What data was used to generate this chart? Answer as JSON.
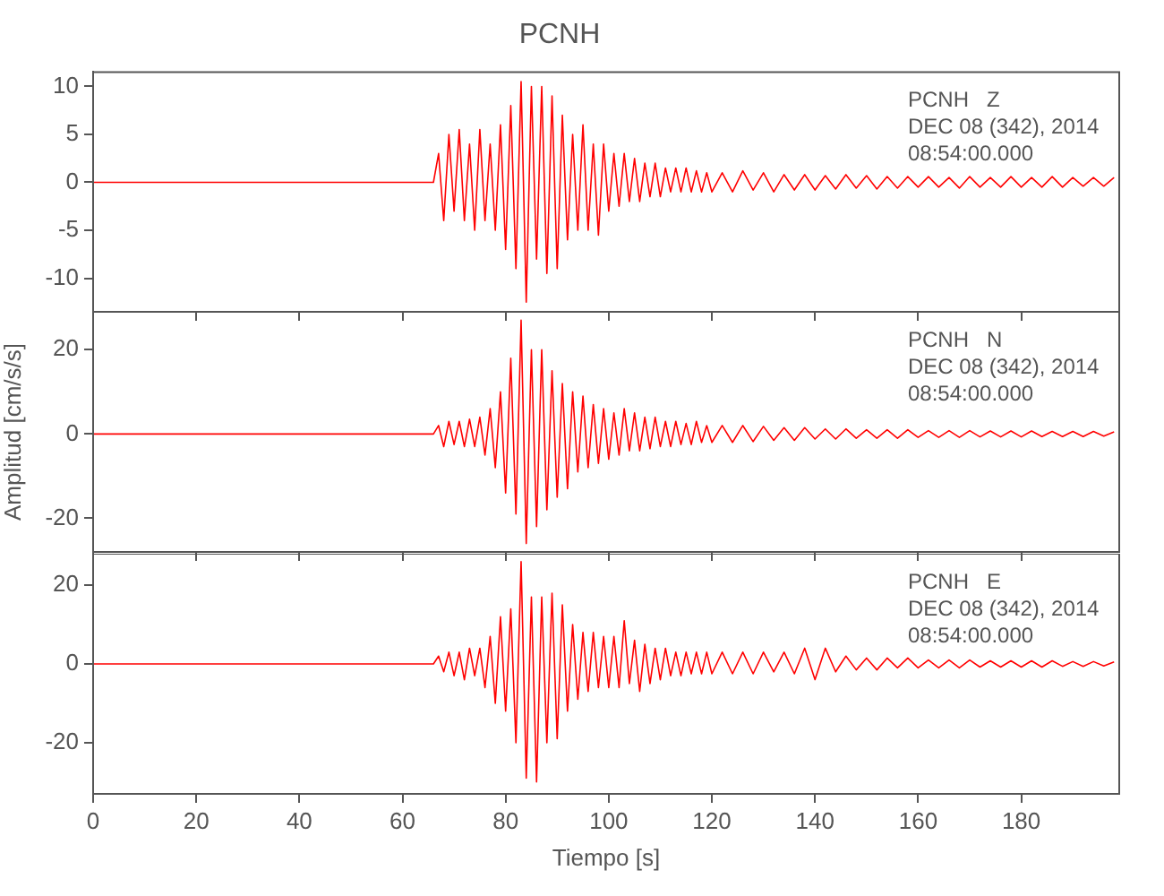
{
  "chart_data": [
    {
      "type": "line",
      "title": "PCNH",
      "annotations": [
        "PCNH   Z",
        "DEC 08 (342), 2014",
        "08:54:00.000"
      ],
      "xlim": [
        0,
        199
      ],
      "xticks": [
        0,
        20,
        40,
        60,
        80,
        100,
        120,
        140,
        160,
        180
      ],
      "ylim": [
        -13.5,
        11.5
      ],
      "yticks": [
        -10,
        -5,
        0,
        5,
        10
      ],
      "tick_labels": "y",
      "x": [
        0,
        66,
        67,
        68,
        69,
        70,
        71,
        72,
        73,
        74,
        75,
        76,
        77,
        78,
        79,
        80,
        81,
        82,
        83,
        84,
        85,
        86,
        87,
        88,
        89,
        90,
        91,
        92,
        93,
        94,
        95,
        96,
        97,
        98,
        99,
        100,
        101,
        102,
        103,
        104,
        105,
        106,
        107,
        108,
        109,
        110,
        111,
        112,
        113,
        114,
        115,
        116,
        117,
        118,
        119,
        120,
        122,
        124,
        126,
        128,
        130,
        132,
        134,
        136,
        138,
        140,
        142,
        144,
        146,
        148,
        150,
        152,
        154,
        156,
        158,
        160,
        162,
        164,
        166,
        168,
        170,
        172,
        174,
        176,
        178,
        180,
        182,
        184,
        186,
        188,
        190,
        192,
        194,
        196,
        198
      ],
      "series": [
        {
          "color": "#ff0000",
          "values": [
            0,
            0,
            3,
            -4,
            5,
            -3,
            5.5,
            -4,
            4,
            -5,
            5.5,
            -4,
            4,
            -5,
            6,
            -7,
            8,
            -9,
            10.5,
            -12.5,
            10,
            -8,
            10,
            -9.5,
            9,
            -9,
            7,
            -6,
            5,
            -5,
            6,
            -5,
            4,
            -5.5,
            4,
            -3,
            3,
            -2.5,
            3,
            -2,
            2.5,
            -2,
            2,
            -1.5,
            2,
            -1.5,
            1.5,
            -1,
            1.5,
            -1,
            1.5,
            -1,
            1.2,
            -1,
            1,
            -1,
            1,
            -1,
            1.2,
            -0.8,
            1,
            -1,
            0.8,
            -0.8,
            0.8,
            -0.8,
            0.7,
            -0.7,
            0.8,
            -0.6,
            0.7,
            -0.7,
            0.6,
            -0.6,
            0.6,
            -0.5,
            0.6,
            -0.5,
            0.5,
            -0.6,
            0.6,
            -0.5,
            0.5,
            -0.5,
            0.6,
            -0.5,
            0.5,
            -0.5,
            0.6,
            -0.5,
            0.5,
            -0.4,
            0.5,
            -0.4,
            0.5
          ]
        }
      ]
    },
    {
      "type": "line",
      "ylabel": "Amplitud [cm/s/s]",
      "annotations": [
        "PCNH   N",
        "DEC 08 (342), 2014",
        "08:54:00.000"
      ],
      "xlim": [
        0,
        199
      ],
      "xticks": [
        0,
        20,
        40,
        60,
        80,
        100,
        120,
        140,
        160,
        180
      ],
      "ylim": [
        -28,
        29
      ],
      "yticks": [
        -20,
        0,
        20
      ],
      "tick_labels": "y",
      "x": [
        0,
        66,
        67,
        68,
        69,
        70,
        71,
        72,
        73,
        74,
        75,
        76,
        77,
        78,
        79,
        80,
        81,
        82,
        83,
        84,
        85,
        86,
        87,
        88,
        89,
        90,
        91,
        92,
        93,
        94,
        95,
        96,
        97,
        98,
        99,
        100,
        101,
        102,
        103,
        104,
        105,
        106,
        107,
        108,
        109,
        110,
        111,
        112,
        113,
        114,
        115,
        116,
        117,
        118,
        119,
        120,
        122,
        124,
        126,
        128,
        130,
        132,
        134,
        136,
        138,
        140,
        142,
        144,
        146,
        148,
        150,
        152,
        154,
        156,
        158,
        160,
        162,
        164,
        166,
        168,
        170,
        172,
        174,
        176,
        178,
        180,
        182,
        184,
        186,
        188,
        190,
        192,
        194,
        196,
        198
      ],
      "series": [
        {
          "color": "#ff0000",
          "values": [
            0,
            0,
            2,
            -3,
            3,
            -2.5,
            3,
            -3,
            3.5,
            -3,
            4,
            -5,
            6,
            -8,
            10,
            -14,
            18,
            -19,
            27,
            -26,
            20,
            -22,
            20,
            -18,
            15,
            -15,
            12,
            -13,
            10,
            -9,
            9,
            -8,
            7,
            -7,
            6,
            -6,
            5,
            -5,
            6,
            -4,
            5,
            -4,
            4,
            -3.5,
            4,
            -3,
            3,
            -3,
            3,
            -2.5,
            2.5,
            -2.5,
            3,
            -2,
            2,
            -2,
            2,
            -2,
            2,
            -1.8,
            1.8,
            -1.5,
            1.5,
            -1.5,
            1.5,
            -1.2,
            1.2,
            -1.2,
            1.2,
            -1,
            1,
            -1,
            1,
            -1,
            1,
            -0.8,
            0.8,
            -0.8,
            0.8,
            -0.8,
            0.8,
            -0.7,
            0.7,
            -0.7,
            0.7,
            -0.7,
            0.7,
            -0.6,
            0.6,
            -0.6,
            0.6,
            -0.6,
            0.6,
            -0.5,
            0.5
          ]
        }
      ]
    },
    {
      "type": "line",
      "xlabel": "Tiempo [s]",
      "annotations": [
        "PCNH   E",
        "DEC 08 (342), 2014",
        "08:54:00.000"
      ],
      "xlim": [
        0,
        199
      ],
      "xticks": [
        0,
        20,
        40,
        60,
        80,
        100,
        120,
        140,
        160,
        180
      ],
      "ylim": [
        -33,
        28
      ],
      "yticks": [
        -20,
        0,
        20
      ],
      "x": [
        0,
        66,
        67,
        68,
        69,
        70,
        71,
        72,
        73,
        74,
        75,
        76,
        77,
        78,
        79,
        80,
        81,
        82,
        83,
        84,
        85,
        86,
        87,
        88,
        89,
        90,
        91,
        92,
        93,
        94,
        95,
        96,
        97,
        98,
        99,
        100,
        101,
        102,
        103,
        104,
        105,
        106,
        107,
        108,
        109,
        110,
        111,
        112,
        113,
        114,
        115,
        116,
        117,
        118,
        119,
        120,
        122,
        124,
        126,
        128,
        130,
        132,
        134,
        136,
        138,
        140,
        142,
        144,
        146,
        148,
        150,
        152,
        154,
        156,
        158,
        160,
        162,
        164,
        166,
        168,
        170,
        172,
        174,
        176,
        178,
        180,
        182,
        184,
        186,
        188,
        190,
        192,
        194,
        196,
        198
      ],
      "series": [
        {
          "color": "#ff0000",
          "values": [
            0,
            0,
            2,
            -2,
            3,
            -3,
            3,
            -4,
            4,
            -3,
            4,
            -6,
            7,
            -10,
            12,
            -12,
            14,
            -20,
            26,
            -29,
            17,
            -30,
            17,
            -20,
            18,
            -19,
            15,
            -12,
            10,
            -9,
            8,
            -7,
            8,
            -6,
            7,
            -6,
            7,
            -6,
            11,
            -5,
            6,
            -7,
            5,
            -5,
            4,
            -4,
            4,
            -3,
            3,
            -3,
            3,
            -2.5,
            3,
            -2.5,
            3,
            -2.5,
            3,
            -2.5,
            3,
            -2.5,
            3,
            -2,
            3,
            -2.5,
            4,
            -4,
            4,
            -2,
            2,
            -1.5,
            1.5,
            -1.5,
            1.5,
            -1,
            1.5,
            -1,
            1,
            -1,
            1,
            -1,
            1,
            -0.8,
            0.8,
            -0.8,
            0.8,
            -0.8,
            0.8,
            -0.8,
            0.8,
            -0.6,
            0.6,
            -0.6,
            0.6,
            -0.5,
            0.5
          ]
        }
      ]
    }
  ]
}
